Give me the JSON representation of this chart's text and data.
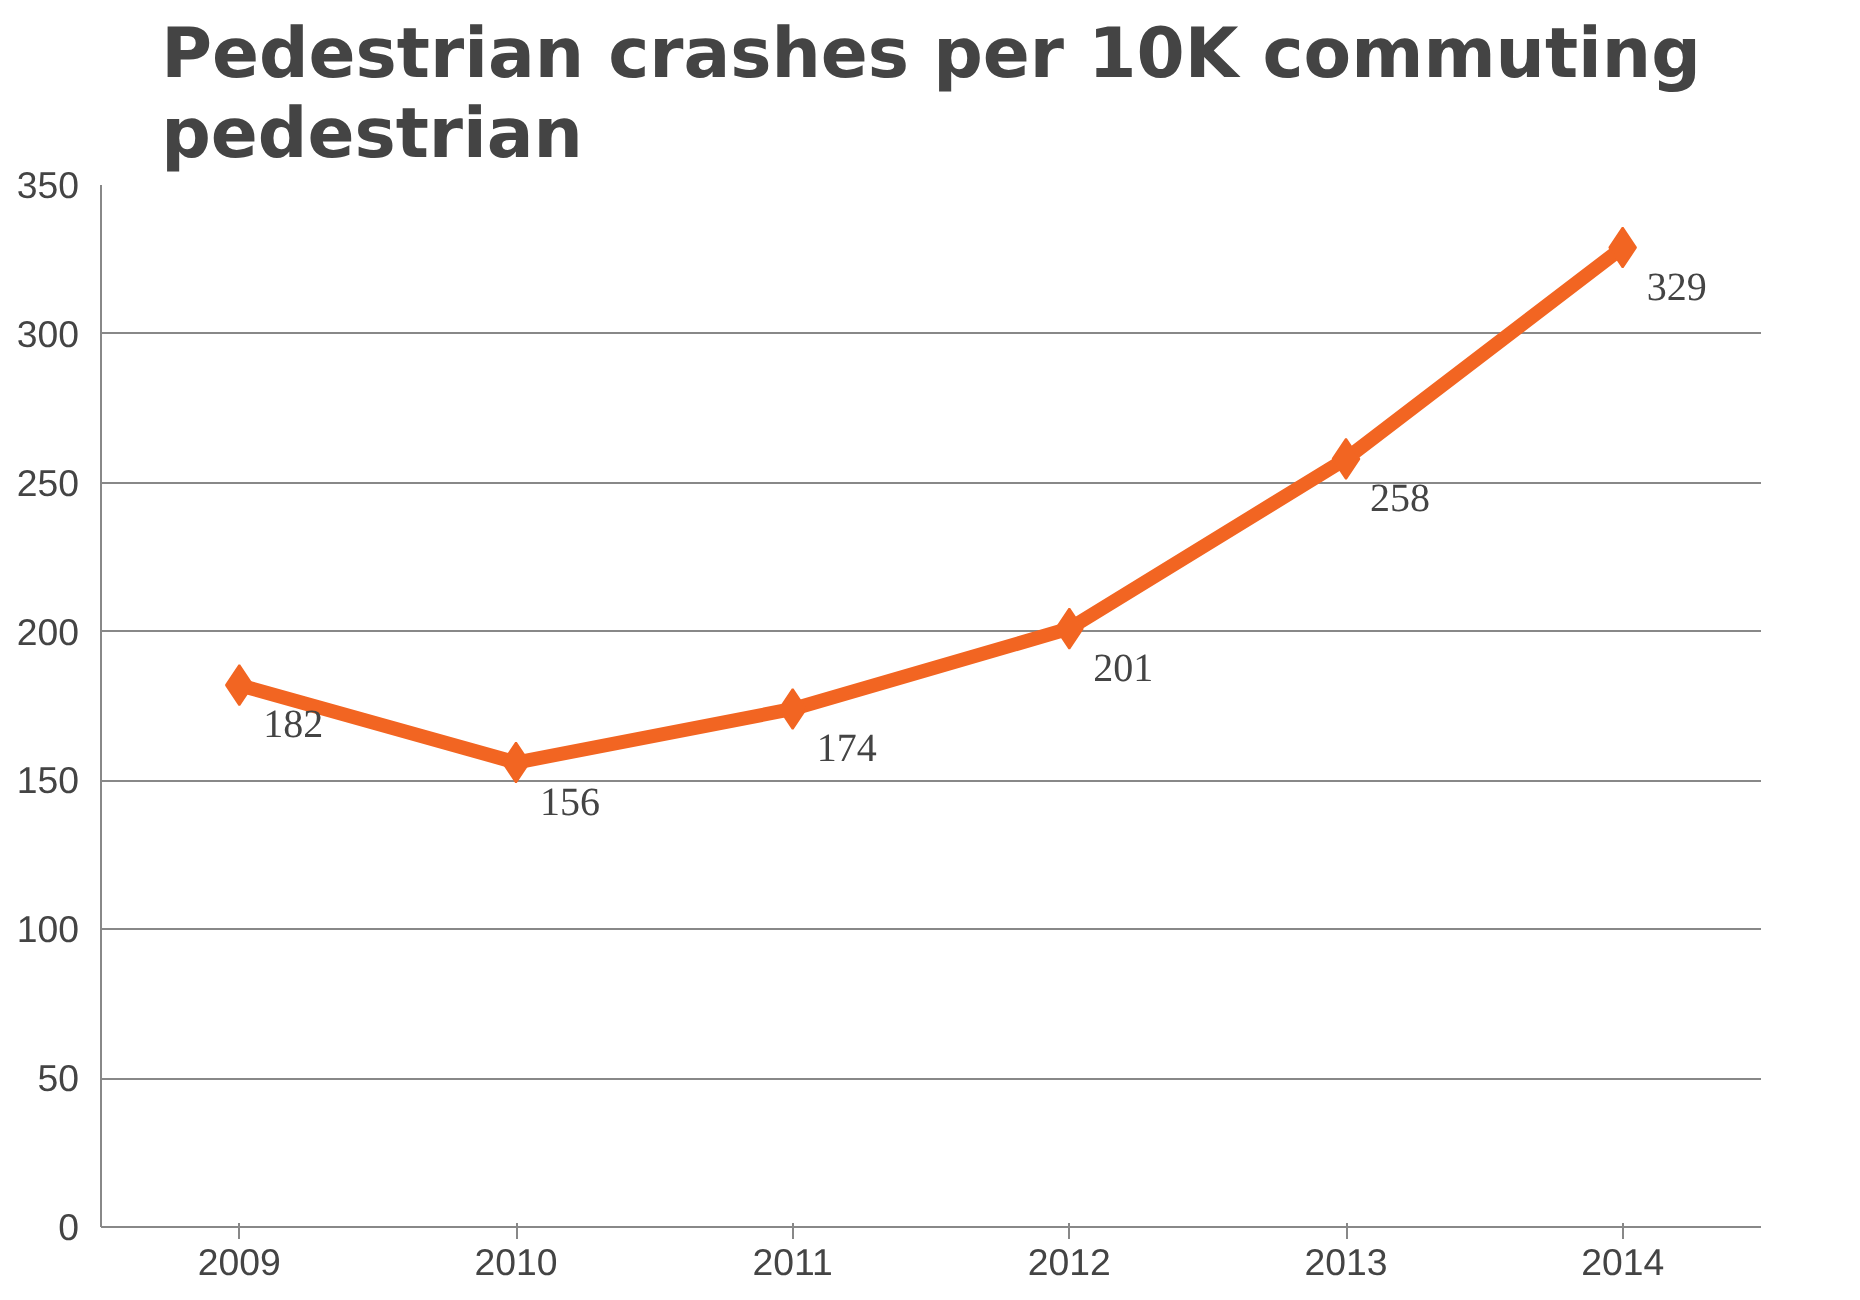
{
  "chart_data": {
    "type": "line",
    "title": "Pedestrian crashes per 10K commuting pedestrian",
    "categories": [
      "2009",
      "2010",
      "2011",
      "2012",
      "2013",
      "2014"
    ],
    "series": [
      {
        "color": "#f26522",
        "values": [
          182,
          156,
          174,
          201,
          258,
          329
        ]
      }
    ],
    "ylim": [
      0,
      350
    ],
    "yticks": [
      0,
      50,
      100,
      150,
      200,
      250,
      300,
      350
    ],
    "grid": "y",
    "marker": "diamond",
    "line_style": "solid",
    "data_labels": true
  }
}
